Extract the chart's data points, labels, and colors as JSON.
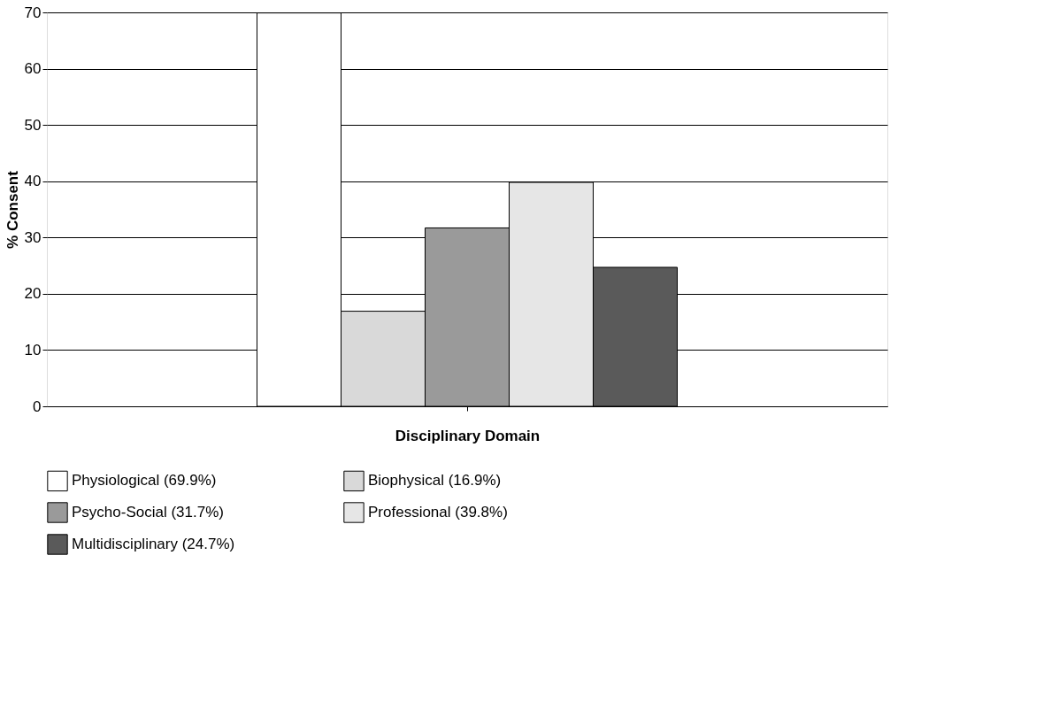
{
  "chart_data": {
    "type": "bar",
    "categories": [
      null
    ],
    "xlabel": "Disciplinary Domain",
    "ylabel": "% Consent",
    "series": [
      {
        "name": "Physiological (69.9%)",
        "color": "#ffffff",
        "values": [
          69.9
        ]
      },
      {
        "name": "Biophysical (16.9%)",
        "color": "#d9d9d9",
        "values": [
          16.9
        ]
      },
      {
        "name": "Psycho-Social (31.7%)",
        "color": "#9a9a9a",
        "values": [
          31.7
        ]
      },
      {
        "name": "Professional (39.8%)",
        "color": "#e6e6e6",
        "values": [
          39.8
        ]
      },
      {
        "name": "Multidisciplinary (24.7%)",
        "color": "#5a5a5a",
        "values": [
          24.7
        ]
      }
    ],
    "ylim": [
      0,
      70
    ],
    "yticks": [
      0,
      10,
      20,
      30,
      40,
      50,
      60,
      70
    ],
    "grid": "y",
    "legend": "bottom",
    "tick_labels": "y"
  }
}
